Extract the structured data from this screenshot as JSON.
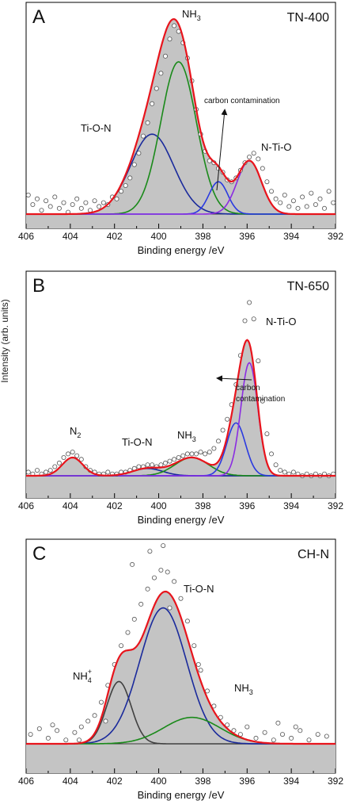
{
  "ylabel": "Intensity (arb. units)",
  "chart_data": [
    {
      "type": "line",
      "panel_letter": "A",
      "sample_label": "TN-400",
      "xlabel": "Binding energy /eV",
      "xlim": [
        406,
        392
      ],
      "x_ticks": [
        "406",
        "404",
        "402",
        "400",
        "398",
        "396",
        "394",
        "392"
      ],
      "baseline": 0.0,
      "ylim": [
        0,
        1.0
      ],
      "series": [
        {
          "label_parts": [
            "Ti-O-N"
          ],
          "color": "#1a2a9c",
          "center": 400.3,
          "amplitude": 0.42,
          "fwhm": 2.3
        },
        {
          "label_parts": [
            "NH",
            "3"
          ],
          "color": "#1a8a1a",
          "center": 399.1,
          "amplitude": 0.8,
          "fwhm": 1.9
        },
        {
          "label_parts": [
            "carbon contamination"
          ],
          "color": "#2a3ae0",
          "center": 397.3,
          "amplitude": 0.17,
          "fwhm": 1.0
        },
        {
          "label_parts": [
            "N-Ti-O"
          ],
          "color": "#8a2be2",
          "center": 395.9,
          "amplitude": 0.28,
          "fwhm": 1.3
        }
      ],
      "raw_points": [
        [
          405.9,
          0.1
        ],
        [
          405.7,
          0.05
        ],
        [
          405.5,
          0.08
        ],
        [
          405.3,
          0.02
        ],
        [
          405.1,
          0.07
        ],
        [
          404.9,
          0.04
        ],
        [
          404.7,
          0.09
        ],
        [
          404.5,
          0.03
        ],
        [
          404.3,
          0.06
        ],
        [
          404.1,
          0.01
        ],
        [
          403.9,
          0.05
        ],
        [
          403.7,
          0.08
        ],
        [
          403.5,
          0.03
        ],
        [
          403.3,
          0.06
        ],
        [
          403.1,
          0.02
        ],
        [
          402.9,
          0.07
        ],
        [
          402.7,
          0.04
        ],
        [
          402.5,
          0.06
        ],
        [
          402.3,
          0.05
        ],
        [
          402.1,
          0.09
        ],
        [
          401.9,
          0.08
        ],
        [
          401.7,
          0.12
        ],
        [
          401.5,
          0.15
        ],
        [
          401.3,
          0.19
        ],
        [
          401.1,
          0.26
        ],
        [
          400.9,
          0.32
        ],
        [
          400.7,
          0.41
        ],
        [
          400.5,
          0.48
        ],
        [
          400.3,
          0.58
        ],
        [
          400.1,
          0.66
        ],
        [
          399.9,
          0.74
        ],
        [
          399.7,
          0.83
        ],
        [
          399.5,
          0.92
        ],
        [
          399.3,
          0.99
        ],
        [
          399.1,
          0.96
        ],
        [
          398.9,
          0.9
        ],
        [
          398.7,
          0.82
        ],
        [
          398.5,
          0.7
        ],
        [
          398.3,
          0.55
        ],
        [
          398.1,
          0.42
        ],
        [
          397.9,
          0.33
        ],
        [
          397.7,
          0.28
        ],
        [
          397.5,
          0.27
        ],
        [
          397.3,
          0.24
        ],
        [
          397.1,
          0.22
        ],
        [
          396.9,
          0.18
        ],
        [
          396.7,
          0.17
        ],
        [
          396.5,
          0.19
        ],
        [
          396.3,
          0.23
        ],
        [
          396.1,
          0.27
        ],
        [
          395.9,
          0.3
        ],
        [
          395.7,
          0.32
        ],
        [
          395.5,
          0.29
        ],
        [
          395.3,
          0.24
        ],
        [
          395.1,
          0.17
        ],
        [
          394.9,
          0.12
        ],
        [
          394.7,
          0.08
        ],
        [
          394.5,
          0.06
        ],
        [
          394.3,
          0.1
        ],
        [
          394.1,
          0.04
        ],
        [
          393.9,
          0.07
        ],
        [
          393.7,
          0.03
        ],
        [
          393.5,
          0.09
        ],
        [
          393.3,
          0.04
        ],
        [
          393.1,
          0.11
        ],
        [
          392.9,
          0.05
        ],
        [
          392.7,
          0.08
        ],
        [
          392.5,
          0.03
        ],
        [
          392.3,
          0.12
        ],
        [
          392.1,
          0.06
        ]
      ]
    },
    {
      "type": "line",
      "panel_letter": "B",
      "sample_label": "TN-650",
      "xlabel": "Binding energy /eV",
      "xlim": [
        406,
        392
      ],
      "x_ticks": [
        "406",
        "404",
        "402",
        "400",
        "398",
        "396",
        "394",
        "392"
      ],
      "baseline": 0.0,
      "ylim": [
        0,
        1.0
      ],
      "series": [
        {
          "label_parts": [
            "N",
            "2"
          ],
          "color": "#1a2a9c",
          "center": 403.9,
          "amplitude": 0.1,
          "fwhm": 1.1
        },
        {
          "label_parts": [
            "Ti-O-N"
          ],
          "color": "#1a2a9c",
          "center": 400.5,
          "amplitude": 0.04,
          "fwhm": 1.6
        },
        {
          "label_parts": [
            "NH",
            "3"
          ],
          "color": "#1a8a1a",
          "center": 398.5,
          "amplitude": 0.1,
          "fwhm": 1.8
        },
        {
          "label_parts": [
            "carbon contamination"
          ],
          "color": "#2a3ae0",
          "center": 396.5,
          "amplitude": 0.29,
          "fwhm": 1.0
        },
        {
          "label_parts": [
            "N-Ti-O"
          ],
          "color": "#8a2be2",
          "center": 395.9,
          "amplitude": 0.62,
          "fwhm": 0.9
        }
      ],
      "raw_points": [
        [
          405.9,
          0.02
        ],
        [
          405.7,
          0.01
        ],
        [
          405.5,
          0.03
        ],
        [
          405.3,
          0.01
        ],
        [
          405.1,
          0.02
        ],
        [
          404.9,
          0.03
        ],
        [
          404.7,
          0.05
        ],
        [
          404.5,
          0.07
        ],
        [
          404.3,
          0.1
        ],
        [
          404.1,
          0.12
        ],
        [
          403.9,
          0.13
        ],
        [
          403.7,
          0.11
        ],
        [
          403.5,
          0.09
        ],
        [
          403.3,
          0.05
        ],
        [
          403.1,
          0.03
        ],
        [
          402.9,
          0.02
        ],
        [
          402.7,
          0.01
        ],
        [
          402.5,
          0.01
        ],
        [
          402.3,
          0.02
        ],
        [
          402.1,
          0.01
        ],
        [
          401.9,
          0.01
        ],
        [
          401.7,
          0.02
        ],
        [
          401.5,
          0.02
        ],
        [
          401.3,
          0.03
        ],
        [
          401.1,
          0.04
        ],
        [
          400.9,
          0.05
        ],
        [
          400.7,
          0.05
        ],
        [
          400.5,
          0.06
        ],
        [
          400.3,
          0.06
        ],
        [
          400.1,
          0.05
        ],
        [
          399.9,
          0.06
        ],
        [
          399.7,
          0.07
        ],
        [
          399.5,
          0.08
        ],
        [
          399.3,
          0.09
        ],
        [
          399.1,
          0.1
        ],
        [
          398.9,
          0.11
        ],
        [
          398.7,
          0.12
        ],
        [
          398.5,
          0.12
        ],
        [
          398.3,
          0.12
        ],
        [
          398.1,
          0.13
        ],
        [
          397.9,
          0.12
        ],
        [
          397.7,
          0.13
        ],
        [
          397.5,
          0.15
        ],
        [
          397.3,
          0.19
        ],
        [
          397.1,
          0.25
        ],
        [
          396.9,
          0.31
        ],
        [
          396.7,
          0.39
        ],
        [
          396.5,
          0.5
        ],
        [
          396.3,
          0.66
        ],
        [
          396.1,
          0.85
        ],
        [
          395.9,
          0.95
        ],
        [
          395.7,
          0.86
        ],
        [
          395.5,
          0.63
        ],
        [
          395.3,
          0.41
        ],
        [
          395.1,
          0.23
        ],
        [
          394.9,
          0.12
        ],
        [
          394.7,
          0.06
        ],
        [
          394.5,
          0.03
        ],
        [
          394.3,
          0.02
        ],
        [
          394.1,
          0.01
        ],
        [
          393.9,
          0.02
        ],
        [
          393.7,
          0.01
        ],
        [
          393.5,
          0.0
        ],
        [
          393.3,
          0.01
        ],
        [
          393.1,
          0.0
        ],
        [
          392.9,
          0.01
        ],
        [
          392.7,
          0.0
        ],
        [
          392.5,
          0.01
        ],
        [
          392.3,
          0.0
        ],
        [
          392.1,
          0.01
        ]
      ]
    },
    {
      "type": "line",
      "panel_letter": "C",
      "sample_label": "CH-N",
      "xlabel": "Binding energy /eV",
      "xlim": [
        406,
        392
      ],
      "x_ticks": [
        "406",
        "404",
        "402",
        "400",
        "398",
        "396",
        "394",
        "392"
      ],
      "baseline": 0.0,
      "ylim": [
        0,
        1.0
      ],
      "series": [
        {
          "label_parts": [
            "NH",
            "4",
            "+"
          ],
          "color": "#404040",
          "center": 401.8,
          "amplitude": 0.33,
          "fwhm": 1.3
        },
        {
          "label_parts": [
            "Ti-O-N"
          ],
          "color": "#1a2a9c",
          "center": 399.8,
          "amplitude": 0.72,
          "fwhm": 2.5
        },
        {
          "label_parts": [
            "NH",
            "3"
          ],
          "color": "#1a8a1a",
          "center": 398.5,
          "amplitude": 0.14,
          "fwhm": 3.0
        }
      ],
      "raw_points": [
        [
          405.8,
          0.05
        ],
        [
          405.4,
          0.08
        ],
        [
          405.0,
          0.03
        ],
        [
          404.6,
          0.07
        ],
        [
          404.2,
          0.02
        ],
        [
          403.8,
          0.06
        ],
        [
          403.5,
          0.09
        ],
        [
          403.2,
          0.12
        ],
        [
          402.9,
          0.15
        ],
        [
          402.6,
          0.22
        ],
        [
          402.3,
          0.31
        ],
        [
          402.0,
          0.42
        ],
        [
          401.7,
          0.52
        ],
        [
          401.4,
          0.59
        ],
        [
          401.1,
          0.66
        ],
        [
          400.8,
          0.74
        ],
        [
          400.5,
          0.82
        ],
        [
          400.2,
          0.88
        ],
        [
          399.9,
          0.92
        ],
        [
          399.6,
          0.91
        ],
        [
          399.3,
          0.86
        ],
        [
          399.0,
          0.77
        ],
        [
          398.7,
          0.65
        ],
        [
          398.4,
          0.52
        ],
        [
          398.1,
          0.39
        ],
        [
          397.8,
          0.28
        ],
        [
          397.5,
          0.2
        ],
        [
          397.2,
          0.14
        ],
        [
          396.9,
          0.1
        ],
        [
          396.6,
          0.07
        ],
        [
          396.3,
          0.05
        ],
        [
          396.0,
          0.09
        ],
        [
          395.6,
          0.03
        ],
        [
          395.2,
          0.06
        ],
        [
          394.8,
          0.02
        ],
        [
          394.4,
          0.05
        ],
        [
          394.0,
          0.03
        ],
        [
          393.6,
          0.07
        ],
        [
          393.2,
          0.02
        ],
        [
          392.8,
          0.05
        ],
        [
          392.4,
          0.04
        ],
        [
          401.2,
          0.95
        ],
        [
          400.4,
          1.02
        ],
        [
          399.8,
          1.05
        ],
        [
          399.5,
          0.72
        ],
        [
          398.2,
          0.42
        ],
        [
          402.4,
          0.12
        ],
        [
          403.6,
          0.02
        ],
        [
          404.8,
          0.1
        ],
        [
          394.6,
          0.11
        ],
        [
          393.8,
          0.09
        ]
      ]
    }
  ]
}
